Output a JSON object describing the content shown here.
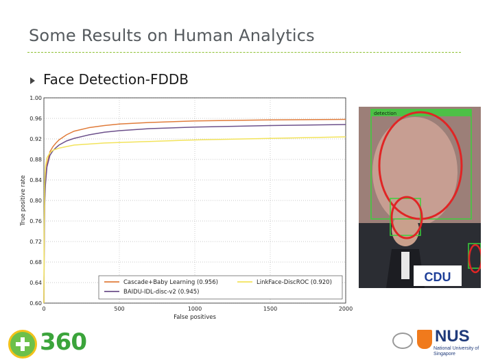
{
  "slide": {
    "title": "Some Results on Human Analytics",
    "bullet": "Face Detection-FDDB"
  },
  "colors": {
    "accent_rule": "#8bbf2e",
    "cascade": "#e07b39",
    "baidu": "#6b4f8a",
    "linkface": "#f2e35a"
  },
  "chart_data": {
    "type": "line",
    "xlabel": "False positives",
    "ylabel": "True positive rate",
    "xlim": [
      0,
      2000
    ],
    "ylim": [
      0.6,
      1.0
    ],
    "xticks": [
      0,
      500,
      1000,
      1500,
      2000
    ],
    "yticks": [
      0.6,
      0.64,
      0.68,
      0.72,
      0.76,
      0.8,
      0.84,
      0.88,
      0.92,
      0.96,
      1.0
    ],
    "ytick_labels": [
      "0.60",
      "0.64",
      "0.68",
      "0.72",
      "0.76",
      "0.80",
      "0.84",
      "0.88",
      "0.92",
      "0.96",
      "1.00"
    ],
    "grid": true,
    "legend_position": "bottom",
    "series": [
      {
        "name": "Cascade+Baby Learning (0.956)",
        "color": "#e07b39",
        "x": [
          0,
          2,
          5,
          10,
          20,
          40,
          60,
          80,
          100,
          150,
          200,
          300,
          400,
          500,
          700,
          1000,
          1500,
          2000
        ],
        "y": [
          0.6,
          0.72,
          0.8,
          0.84,
          0.87,
          0.895,
          0.905,
          0.912,
          0.918,
          0.928,
          0.935,
          0.942,
          0.946,
          0.949,
          0.952,
          0.955,
          0.957,
          0.958
        ]
      },
      {
        "name": "BAIDU-IDL-disc-v2 (0.945)",
        "color": "#6b4f8a",
        "x": [
          0,
          2,
          5,
          10,
          20,
          40,
          60,
          80,
          100,
          150,
          200,
          300,
          400,
          500,
          700,
          1000,
          1500,
          2000
        ],
        "y": [
          0.6,
          0.7,
          0.79,
          0.83,
          0.865,
          0.888,
          0.897,
          0.903,
          0.908,
          0.916,
          0.921,
          0.928,
          0.933,
          0.936,
          0.94,
          0.943,
          0.946,
          0.948
        ]
      },
      {
        "name": "LinkFace-DiscROC (0.920)",
        "color": "#f2e35a",
        "x": [
          0,
          2,
          5,
          10,
          20,
          40,
          60,
          80,
          100,
          150,
          200,
          300,
          400,
          500,
          700,
          1000,
          1500,
          2000
        ],
        "y": [
          0.6,
          0.75,
          0.83,
          0.865,
          0.883,
          0.893,
          0.898,
          0.9,
          0.902,
          0.905,
          0.908,
          0.91,
          0.912,
          0.913,
          0.915,
          0.918,
          0.921,
          0.924
        ]
      }
    ]
  },
  "photo": {
    "detection_label": "detection",
    "sign_text": "CDU"
  },
  "logos": {
    "left_brand": "360",
    "right_brand": "NUS",
    "right_sub": "National University of Singapore"
  }
}
